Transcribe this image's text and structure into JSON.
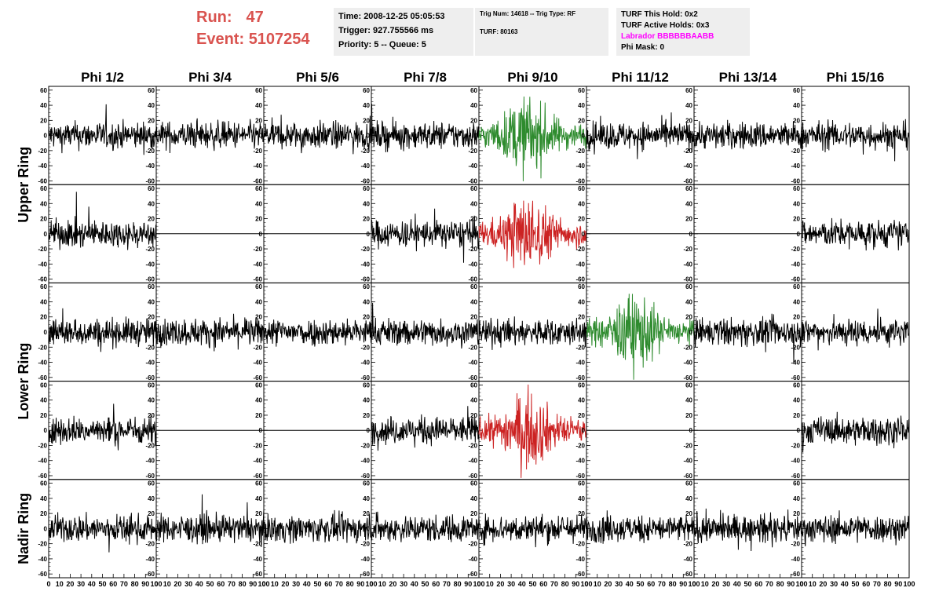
{
  "header": {
    "run_label": "Run:",
    "run_value": "47",
    "event_label": "Event:",
    "event_value": "5107254"
  },
  "info_time": {
    "time": "Time: 2008-12-25 05:05:53",
    "trigger": "Trigger: 927.755566 ms",
    "priority": "Priority: 5 -- Queue: 5"
  },
  "info_trig": {
    "trig": "Trig Num: 14618 -- Trig Type: RF",
    "turf": "TURF: 80163"
  },
  "info_turf": {
    "this_hold": "TURF This Hold: 0x2",
    "active_holds": "TURF Active Holds: 0x3",
    "labrador": "Labrador BBBBBBAABB",
    "phi_mask": "Phi Mask: 0"
  },
  "colors": {
    "header_red": "#d9534f",
    "labrador_pink": "#ff00ff",
    "trace_black": "#000000",
    "trace_green": "#2e8b2e",
    "trace_red": "#cc2222"
  },
  "chart_data": {
    "type": "line",
    "columns": [
      "Phi 1/2",
      "Phi 3/4",
      "Phi 5/6",
      "Phi 7/8",
      "Phi 9/10",
      "Phi 11/12",
      "Phi 13/14",
      "Phi 15/16"
    ],
    "ring_labels": [
      "Upper Ring",
      "Lower Ring",
      "Nadir Ring"
    ],
    "xlim": [
      0,
      100
    ],
    "ylim": [
      -65,
      65
    ],
    "x_ticks": [
      0,
      10,
      20,
      30,
      40,
      50,
      60,
      70,
      80,
      90,
      100
    ],
    "y_ticks": [
      -60,
      -40,
      -20,
      0,
      20,
      40,
      60
    ],
    "row_ring": [
      0,
      0,
      1,
      1,
      2
    ],
    "panels": [
      [
        "noise",
        "noise",
        "noise",
        "noise",
        "green",
        "noise",
        "noise",
        "noise"
      ],
      [
        "noise",
        "flat",
        "flat",
        "noise",
        "red",
        "flat",
        "flat",
        "noise"
      ],
      [
        "noise",
        "noise",
        "noise",
        "noise",
        "noise",
        "green",
        "noise",
        "noise"
      ],
      [
        "noise",
        "flat",
        "flat",
        "noise",
        "red",
        "flat",
        "flat",
        "noise"
      ],
      [
        "noise",
        "noise",
        "noise",
        "noise",
        "noise",
        "noise",
        "noise",
        "noise"
      ]
    ]
  }
}
